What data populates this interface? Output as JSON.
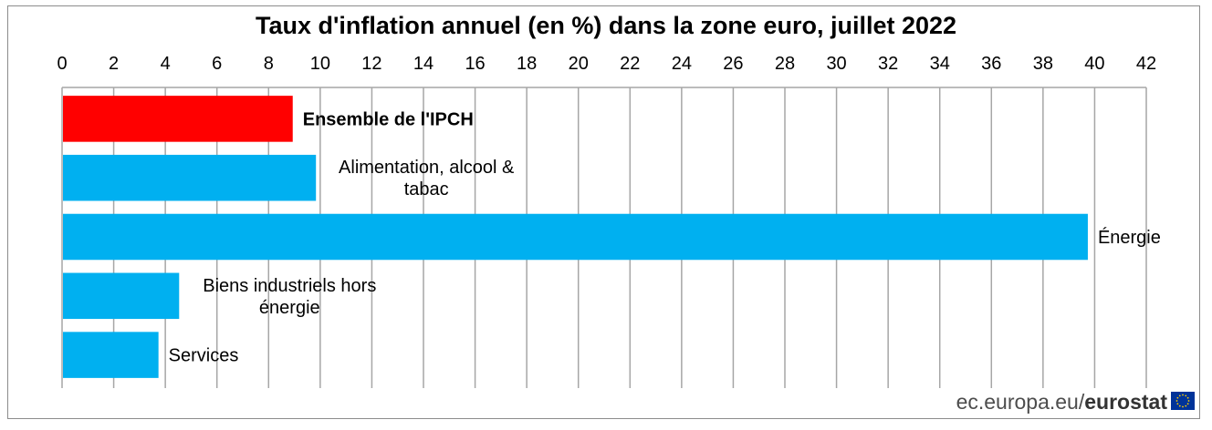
{
  "chart_data": {
    "type": "bar",
    "orientation": "horizontal",
    "title": "Taux d'inflation annuel (en %) dans la zone euro, juillet 2022",
    "xlabel": "",
    "ylabel": "",
    "xlim": [
      0,
      42
    ],
    "x_ticks": [
      0,
      2,
      4,
      6,
      8,
      10,
      12,
      14,
      16,
      18,
      20,
      22,
      24,
      26,
      28,
      30,
      32,
      34,
      36,
      38,
      40,
      42
    ],
    "grid": "vertical",
    "categories": [
      {
        "label_lines": [
          "Ensemble de l'IPCH"
        ],
        "bold": true
      },
      {
        "label_lines": [
          "Alimentation, alcool &",
          "tabac"
        ],
        "bold": false
      },
      {
        "label_lines": [
          "Énergie"
        ],
        "bold": false
      },
      {
        "label_lines": [
          "Biens industriels hors",
          "énergie"
        ],
        "bold": false
      },
      {
        "label_lines": [
          "Services"
        ],
        "bold": false
      }
    ],
    "values": [
      8.9,
      9.8,
      39.7,
      4.5,
      3.7
    ],
    "colors": [
      "#ff0000",
      "#00b0f0",
      "#00b0f0",
      "#00b0f0",
      "#00b0f0"
    ]
  },
  "source": {
    "text": "ec.europa.eu/",
    "brand": "eurostat"
  },
  "icons": {
    "flag": "eu-flag-icon"
  }
}
